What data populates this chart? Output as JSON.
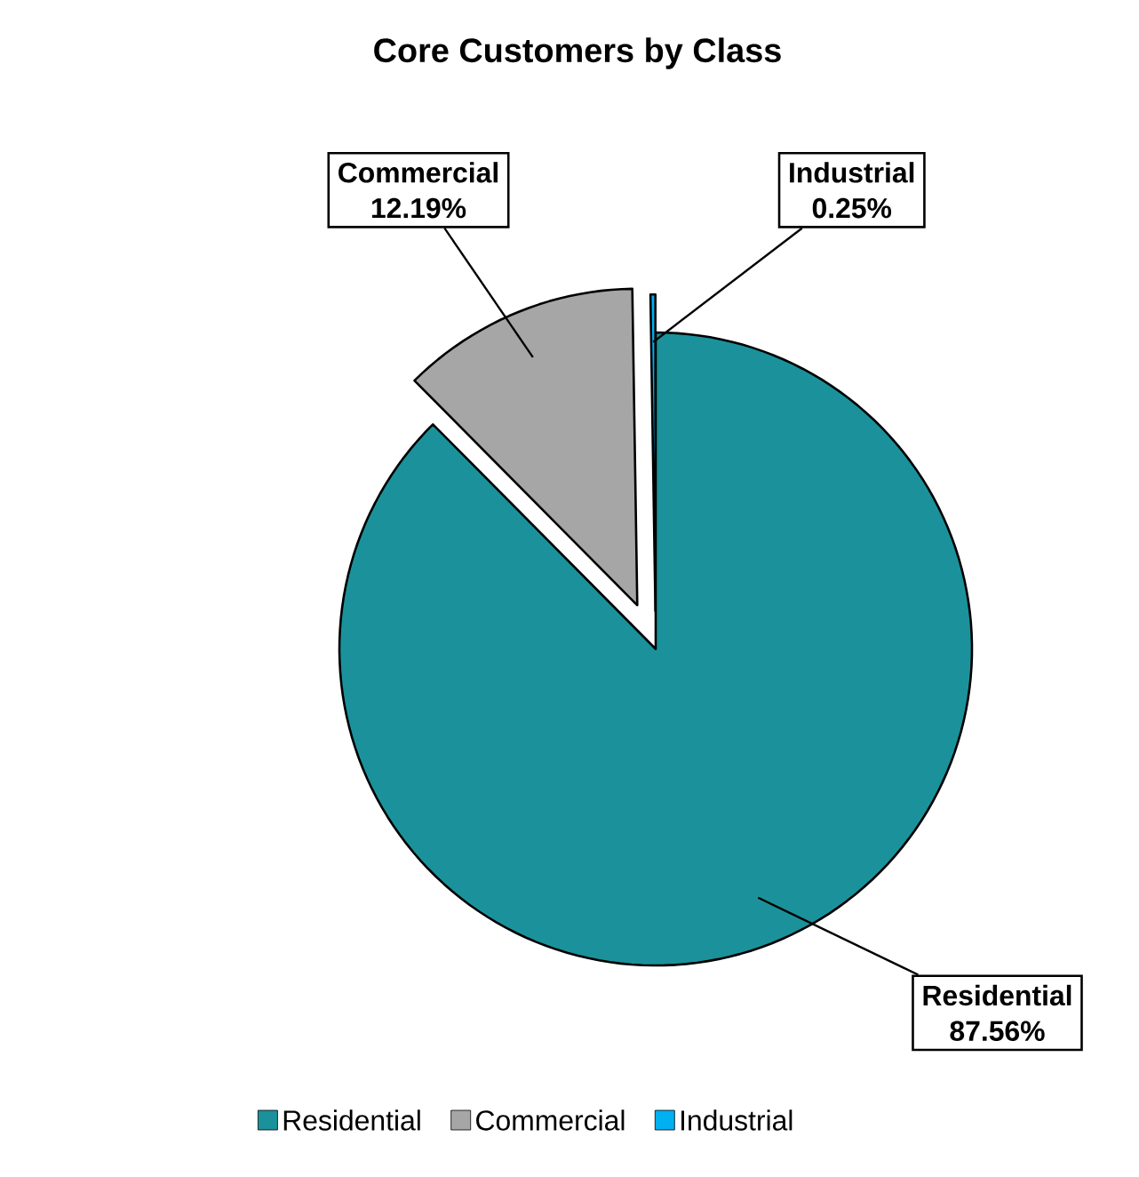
{
  "chart_data": {
    "type": "pie",
    "title": "Core Customers by Class",
    "categories": [
      "Residential",
      "Commercial",
      "Industrial"
    ],
    "values": [
      87.56,
      12.19,
      0.25
    ],
    "value_labels": [
      "87.56%",
      "12.19%",
      "0.25%"
    ],
    "colors": [
      "#1b929b",
      "#a6a6a6",
      "#00b0f0"
    ],
    "legend": "bottom"
  }
}
